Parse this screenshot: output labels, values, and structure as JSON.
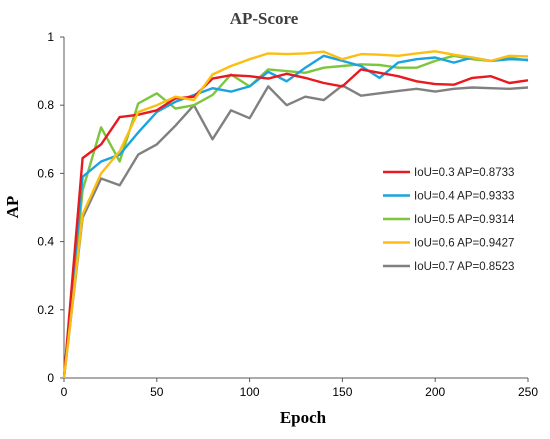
{
  "chart_data": {
    "type": "line",
    "title": "AP-Score",
    "xlabel": "Epoch",
    "ylabel": "AP",
    "xlim": [
      0,
      250
    ],
    "ylim": [
      0,
      1
    ],
    "xticks": [
      0,
      50,
      100,
      150,
      200,
      250
    ],
    "yticks": [
      0,
      0.2,
      0.4,
      0.6,
      0.8,
      1
    ],
    "ytick_labels": [
      "0",
      "0.2",
      "0.4",
      "0.6",
      "0.8",
      "1"
    ],
    "grid": false,
    "legend_position": "right",
    "x": [
      0,
      10,
      20,
      30,
      40,
      50,
      60,
      70,
      80,
      90,
      100,
      110,
      120,
      130,
      140,
      150,
      160,
      170,
      180,
      190,
      200,
      210,
      220,
      230,
      240,
      250
    ],
    "series": [
      {
        "name": "IoU=0.3 AP=0.8733",
        "color": "#e8191f",
        "values": [
          0,
          0.645,
          0.685,
          0.765,
          0.772,
          0.785,
          0.82,
          0.825,
          0.878,
          0.888,
          0.885,
          0.878,
          0.892,
          0.88,
          0.865,
          0.855,
          0.905,
          0.895,
          0.885,
          0.87,
          0.862,
          0.86,
          0.88,
          0.885,
          0.865,
          0.873
        ]
      },
      {
        "name": "IoU=0.4 AP=0.9333",
        "color": "#1aa3e0",
        "values": [
          0,
          0.59,
          0.635,
          0.655,
          0.72,
          0.78,
          0.81,
          0.83,
          0.85,
          0.84,
          0.855,
          0.898,
          0.87,
          0.91,
          0.945,
          0.93,
          0.915,
          0.88,
          0.925,
          0.935,
          0.94,
          0.925,
          0.94,
          0.93,
          0.935,
          0.933
        ]
      },
      {
        "name": "IoU=0.5 AP=0.9314",
        "color": "#7cc63c",
        "values": [
          0,
          0.55,
          0.735,
          0.635,
          0.805,
          0.835,
          0.79,
          0.8,
          0.83,
          0.89,
          0.855,
          0.905,
          0.9,
          0.895,
          0.91,
          0.915,
          0.92,
          0.918,
          0.91,
          0.91,
          0.93,
          0.945,
          0.935,
          0.93,
          0.94,
          0.931
        ]
      },
      {
        "name": "IoU=0.6 AP=0.9427",
        "color": "#fbbe11",
        "values": [
          0,
          0.48,
          0.6,
          0.665,
          0.78,
          0.8,
          0.825,
          0.815,
          0.89,
          0.915,
          0.935,
          0.952,
          0.95,
          0.952,
          0.957,
          0.935,
          0.95,
          0.948,
          0.945,
          0.952,
          0.958,
          0.948,
          0.94,
          0.93,
          0.945,
          0.943
        ]
      },
      {
        "name": "IoU=0.7 AP=0.8523",
        "color": "#808080",
        "values": [
          0,
          0.47,
          0.585,
          0.565,
          0.655,
          0.685,
          0.74,
          0.8,
          0.7,
          0.785,
          0.762,
          0.855,
          0.8,
          0.825,
          0.815,
          0.858,
          0.828,
          0.835,
          0.842,
          0.848,
          0.84,
          0.848,
          0.852,
          0.85,
          0.848,
          0.852
        ]
      }
    ]
  }
}
